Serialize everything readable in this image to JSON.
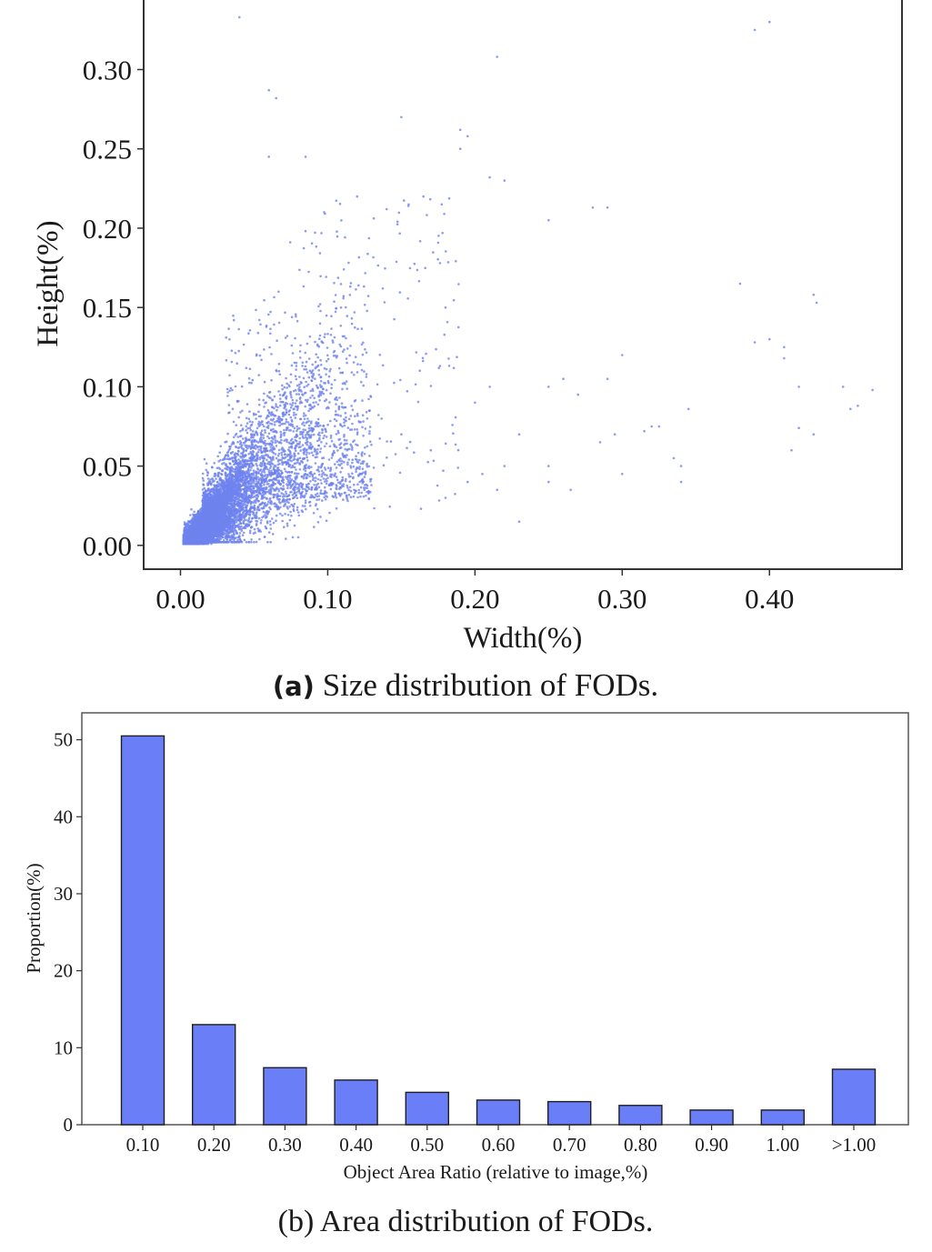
{
  "scatter_point_color": "#6f83ef",
  "bar_fill_color": "#6a7ef8",
  "chart_data": [
    {
      "type": "scatter",
      "title": "",
      "xlabel": "Width(%)",
      "ylabel": "Height(%)",
      "xlim": [
        -0.025,
        0.49
      ],
      "ylim": [
        -0.015,
        0.345
      ],
      "xticks": [
        0.0,
        0.1,
        0.2,
        0.3,
        0.4
      ],
      "xtick_labels": [
        "0.00",
        "0.10",
        "0.20",
        "0.30",
        "0.40"
      ],
      "yticks": [
        0.0,
        0.05,
        0.1,
        0.15,
        0.2,
        0.25,
        0.3
      ],
      "ytick_labels": [
        "0.00",
        "0.05",
        "0.10",
        "0.15",
        "0.20",
        "0.25",
        "0.30"
      ],
      "grid": false,
      "caption_label": "(a)",
      "caption_text": " Size distribution of FODs.",
      "points_note": "dense cluster near origin, ~thousands of points",
      "outliers": [
        [
          0.04,
          0.333
        ],
        [
          0.39,
          0.325
        ],
        [
          0.4,
          0.33
        ],
        [
          0.215,
          0.308
        ],
        [
          0.06,
          0.287
        ],
        [
          0.065,
          0.282
        ],
        [
          0.15,
          0.27
        ],
        [
          0.19,
          0.262
        ],
        [
          0.195,
          0.258
        ],
        [
          0.19,
          0.25
        ],
        [
          0.06,
          0.245
        ],
        [
          0.085,
          0.245
        ],
        [
          0.21,
          0.232
        ],
        [
          0.22,
          0.23
        ],
        [
          0.28,
          0.213
        ],
        [
          0.29,
          0.213
        ],
        [
          0.25,
          0.205
        ],
        [
          0.38,
          0.165
        ],
        [
          0.43,
          0.158
        ],
        [
          0.432,
          0.153
        ],
        [
          0.3,
          0.12
        ],
        [
          0.41,
          0.125
        ],
        [
          0.39,
          0.128
        ],
        [
          0.4,
          0.13
        ],
        [
          0.41,
          0.118
        ],
        [
          0.42,
          0.1
        ],
        [
          0.26,
          0.105
        ],
        [
          0.25,
          0.1
        ],
        [
          0.27,
          0.095
        ],
        [
          0.29,
          0.105
        ],
        [
          0.47,
          0.098
        ],
        [
          0.46,
          0.088
        ],
        [
          0.455,
          0.086
        ],
        [
          0.32,
          0.075
        ],
        [
          0.325,
          0.075
        ],
        [
          0.315,
          0.072
        ],
        [
          0.345,
          0.086
        ],
        [
          0.42,
          0.074
        ],
        [
          0.415,
          0.06
        ],
        [
          0.34,
          0.05
        ],
        [
          0.34,
          0.04
        ],
        [
          0.25,
          0.05
        ],
        [
          0.25,
          0.04
        ],
        [
          0.265,
          0.035
        ],
        [
          0.3,
          0.045
        ],
        [
          0.295,
          0.07
        ],
        [
          0.285,
          0.065
        ],
        [
          0.335,
          0.055
        ],
        [
          0.23,
          0.07
        ],
        [
          0.22,
          0.05
        ],
        [
          0.215,
          0.035
        ],
        [
          0.205,
          0.045
        ],
        [
          0.195,
          0.04
        ],
        [
          0.2,
          0.09
        ],
        [
          0.21,
          0.1
        ],
        [
          0.18,
          0.15
        ],
        [
          0.165,
          0.22
        ],
        [
          0.155,
          0.215
        ],
        [
          0.14,
          0.212
        ],
        [
          0.12,
          0.22
        ],
        [
          0.45,
          0.1
        ],
        [
          0.43,
          0.07
        ],
        [
          0.23,
          0.015
        ],
        [
          0.18,
          0.03
        ],
        [
          0.17,
          0.06
        ],
        [
          0.15,
          0.07
        ]
      ]
    },
    {
      "type": "bar",
      "title": "",
      "xlabel": "Object Area Ratio (relative to image,%)",
      "ylabel": "Proportion(%)",
      "categories": [
        "0.10",
        "0.20",
        "0.30",
        "0.40",
        "0.50",
        "0.60",
        "0.70",
        "0.80",
        "0.90",
        "1.00",
        ">1.00"
      ],
      "values": [
        50.5,
        13.0,
        7.4,
        5.8,
        4.2,
        3.2,
        3.0,
        2.5,
        1.9,
        1.9,
        7.2
      ],
      "ylim": [
        0,
        53.5
      ],
      "yticks": [
        0,
        10,
        20,
        30,
        40,
        50
      ],
      "grid": false,
      "caption_text": "(b) Area distribution of FODs."
    }
  ]
}
